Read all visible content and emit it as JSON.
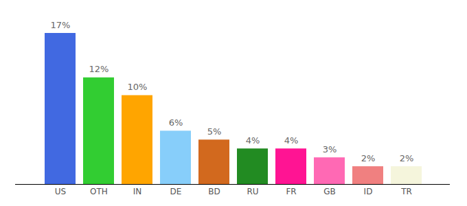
{
  "chart_data": {
    "type": "bar",
    "categories": [
      "US",
      "OTH",
      "IN",
      "DE",
      "BD",
      "RU",
      "FR",
      "GB",
      "ID",
      "TR"
    ],
    "values": [
      17,
      12,
      10,
      6,
      5,
      4,
      4,
      3,
      2,
      2
    ],
    "value_labels": [
      "17%",
      "12%",
      "10%",
      "6%",
      "5%",
      "4%",
      "4%",
      "3%",
      "2%",
      "2%"
    ],
    "colors": [
      "#4169e1",
      "#32cd32",
      "#ffa500",
      "#87cefa",
      "#d2691e",
      "#228b22",
      "#ff1493",
      "#ff69b4",
      "#f08080",
      "#f5f5dc"
    ],
    "ylim": [
      0,
      17
    ],
    "data_labels": true,
    "tick_labels": "x",
    "grid": false
  }
}
